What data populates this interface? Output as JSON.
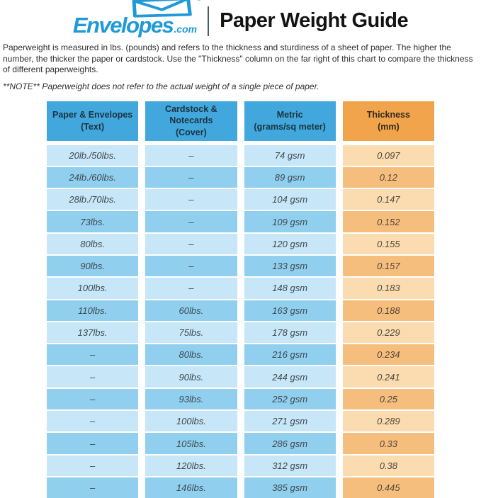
{
  "header": {
    "logo": {
      "brand": "Envelopes",
      "tld": ".com",
      "registered": "®"
    },
    "title": "Paper Weight Guide"
  },
  "intro": {
    "paragraph": "Paperweight is measured in lbs. (pounds) and refers to the thickness and sturdiness of a sheet of paper. The higher the number, the thicker the paper or cardstock. Use the \"Thickness\" column on the far right of this chart to compare the thickness of different paperweights.",
    "note": "**NOTE** Paperweight does not refer to the actual weight of a single piece of paper."
  },
  "colors": {
    "logo_blue": "#1F9AD7",
    "header_blue": "#41A7DC",
    "header_orange": "#F2A44C",
    "row_blue_light": "#C7E6F7",
    "row_blue_dark": "#90CFEE",
    "row_orange_light": "#FADCB0",
    "row_orange_dark": "#F6BE7D"
  },
  "chart_data": {
    "type": "table",
    "title": "Paper Weight Guide",
    "columns": [
      {
        "label": "Paper & Envelopes",
        "sublabel": "(Text)"
      },
      {
        "label": "Cardstock & Notecards",
        "sublabel": "(Cover)"
      },
      {
        "label": "Metric",
        "sublabel": "(grams/sq meter)"
      },
      {
        "label": "Thickness",
        "sublabel": "(mm)"
      }
    ],
    "rows": [
      [
        "20lb./50lbs.",
        "–",
        "74 gsm",
        "0.097"
      ],
      [
        "24lb./60lbs.",
        "–",
        "89 gsm",
        "0.12"
      ],
      [
        "28lb./70lbs.",
        "–",
        "104 gsm",
        "0.147"
      ],
      [
        "73lbs.",
        "–",
        "109 gsm",
        "0.152"
      ],
      [
        "80lbs.",
        "–",
        "120 gsm",
        "0.155"
      ],
      [
        "90lbs.",
        "–",
        "133 gsm",
        "0.157"
      ],
      [
        "100lbs.",
        "–",
        "148 gsm",
        "0.183"
      ],
      [
        "110lbs.",
        "60lbs.",
        "163 gsm",
        "0.188"
      ],
      [
        "137lbs.",
        "75lbs.",
        "178 gsm",
        "0.229"
      ],
      [
        "–",
        "80lbs.",
        "216 gsm",
        "0.234"
      ],
      [
        "–",
        "90lbs.",
        "244 gsm",
        "0.241"
      ],
      [
        "–",
        "93lbs.",
        "252 gsm",
        "0.25"
      ],
      [
        "–",
        "100lbs.",
        "271 gsm",
        "0.289"
      ],
      [
        "–",
        "105lbs.",
        "286 gsm",
        "0.33"
      ],
      [
        "–",
        "120lbs.",
        "312 gsm",
        "0.38"
      ],
      [
        "–",
        "146lbs.",
        "385 gsm",
        "0.445"
      ]
    ]
  }
}
